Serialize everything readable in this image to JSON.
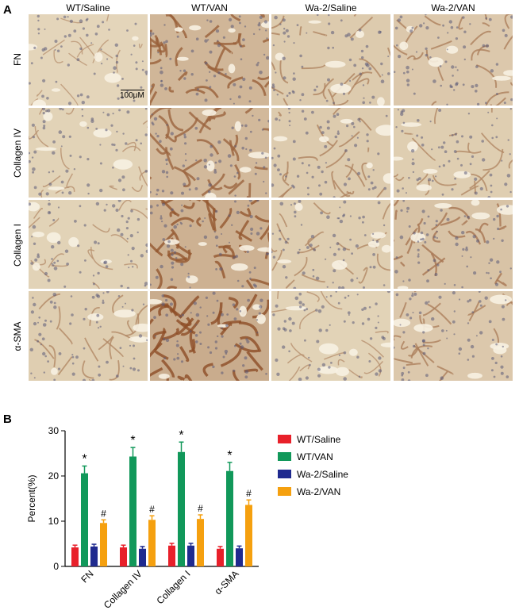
{
  "panel_a": {
    "label": "A",
    "columns": [
      "WT/Saline",
      "WT/VAN",
      "Wa-2/Saline",
      "Wa-2/VAN"
    ],
    "rows": [
      "FN",
      "Collagen IV",
      "Collagen I",
      "α-SMA"
    ],
    "scale_bar": "100μM",
    "colors": {
      "pale": "#e9ddc2",
      "stained": "#8a4a22"
    }
  },
  "panel_b": {
    "label": "B",
    "chart_data": {
      "type": "bar",
      "title": "",
      "xlabel": "",
      "ylabel": "Percent(%)",
      "ylim": [
        0,
        30
      ],
      "yticks": [
        0,
        10,
        20,
        30
      ],
      "categories": [
        "FN",
        "Collagen IV",
        "Collagen I",
        "α-SMA"
      ],
      "series": [
        {
          "name": "WT/Saline",
          "color": "#e8202a",
          "values": [
            4.2,
            4.2,
            4.6,
            3.9
          ],
          "errors": [
            0.5,
            0.5,
            0.5,
            0.5
          ]
        },
        {
          "name": "WT/VAN",
          "color": "#11985a",
          "values": [
            20.6,
            24.3,
            25.3,
            21.1
          ],
          "errors": [
            1.6,
            2.0,
            2.2,
            1.9
          ]
        },
        {
          "name": "Wa-2/Saline",
          "color": "#1f2a8f",
          "values": [
            4.4,
            3.9,
            4.6,
            4.0
          ],
          "errors": [
            0.5,
            0.5,
            0.5,
            0.5
          ]
        },
        {
          "name": "Wa-2/VAN",
          "color": "#f5a00f",
          "values": [
            9.6,
            10.3,
            10.5,
            13.6
          ],
          "errors": [
            0.7,
            0.9,
            0.9,
            1.1
          ]
        }
      ],
      "annotations": {
        "WT/VAN": "*",
        "Wa-2/VAN": "#"
      },
      "legend_position": "right"
    }
  }
}
